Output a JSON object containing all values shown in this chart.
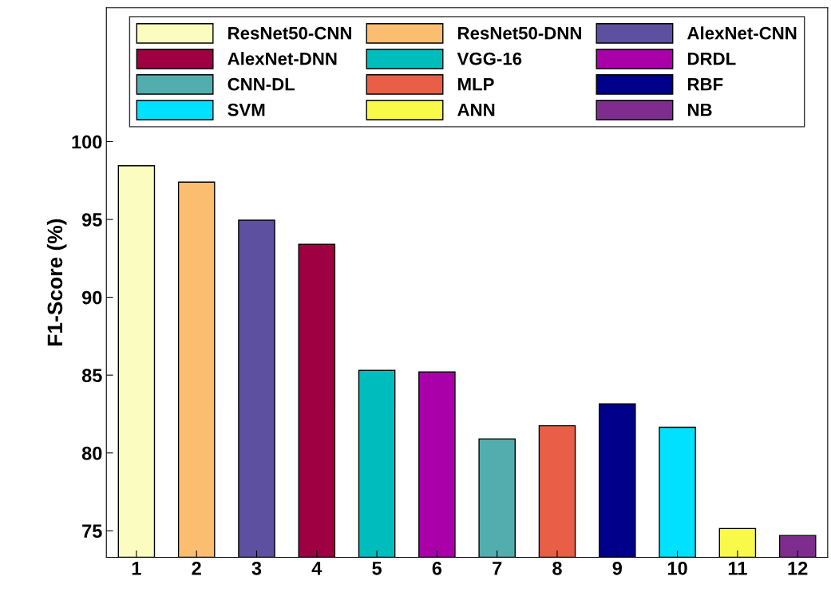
{
  "chart_data": {
    "type": "bar",
    "ylabel": "F1-Score (%)",
    "categories": [
      "1",
      "2",
      "3",
      "4",
      "5",
      "6",
      "7",
      "8",
      "9",
      "10",
      "11",
      "12"
    ],
    "series": [
      {
        "name": "ResNet50-CNN",
        "color": "#fbfcbf",
        "values": [
          98.45,
          null,
          null,
          null,
          null,
          null,
          null,
          null,
          null,
          null,
          null,
          null
        ]
      },
      {
        "name": "ResNet50-DNN",
        "color": "#fbbd6f",
        "values": [
          null,
          97.4,
          null,
          null,
          null,
          null,
          null,
          null,
          null,
          null,
          null,
          null
        ]
      },
      {
        "name": "AlexNet-CNN",
        "color": "#5d50a0",
        "values": [
          null,
          null,
          94.95,
          null,
          null,
          null,
          null,
          null,
          null,
          null,
          null,
          null
        ]
      },
      {
        "name": "AlexNet-DNN",
        "color": "#9e0041",
        "values": [
          null,
          null,
          null,
          93.4,
          null,
          null,
          null,
          null,
          null,
          null,
          null,
          null
        ]
      },
      {
        "name": "VGG-16",
        "color": "#00bdbd",
        "values": [
          null,
          null,
          null,
          null,
          85.3,
          null,
          null,
          null,
          null,
          null,
          null,
          null
        ]
      },
      {
        "name": "DRDL",
        "color": "#aa00aa",
        "values": [
          null,
          null,
          null,
          null,
          null,
          85.2,
          null,
          null,
          null,
          null,
          null,
          null
        ]
      },
      {
        "name": "CNN-DL",
        "color": "#52aeae",
        "values": [
          null,
          null,
          null,
          null,
          null,
          null,
          80.9,
          null,
          null,
          null,
          null,
          null
        ]
      },
      {
        "name": "MLP",
        "color": "#e85e47",
        "values": [
          null,
          null,
          null,
          null,
          null,
          null,
          null,
          81.75,
          null,
          null,
          null,
          null
        ]
      },
      {
        "name": "RBF",
        "color": "#00008b",
        "values": [
          null,
          null,
          null,
          null,
          null,
          null,
          null,
          null,
          83.15,
          null,
          null,
          null
        ]
      },
      {
        "name": "SVM",
        "color": "#00e0ff",
        "values": [
          null,
          null,
          null,
          null,
          null,
          null,
          null,
          null,
          null,
          81.65,
          null,
          null
        ]
      },
      {
        "name": "ANN",
        "color": "#f9f94a",
        "values": [
          null,
          null,
          null,
          null,
          null,
          null,
          null,
          null,
          null,
          null,
          75.15,
          null
        ]
      },
      {
        "name": "NB",
        "color": "#7e2d8e",
        "values": [
          null,
          null,
          null,
          null,
          null,
          null,
          null,
          null,
          null,
          null,
          null,
          74.7
        ]
      }
    ],
    "ylim": [
      73.3,
      108.6
    ],
    "yticks": [
      75,
      80,
      85,
      90,
      95,
      100
    ],
    "grid": false,
    "legend": "top"
  }
}
